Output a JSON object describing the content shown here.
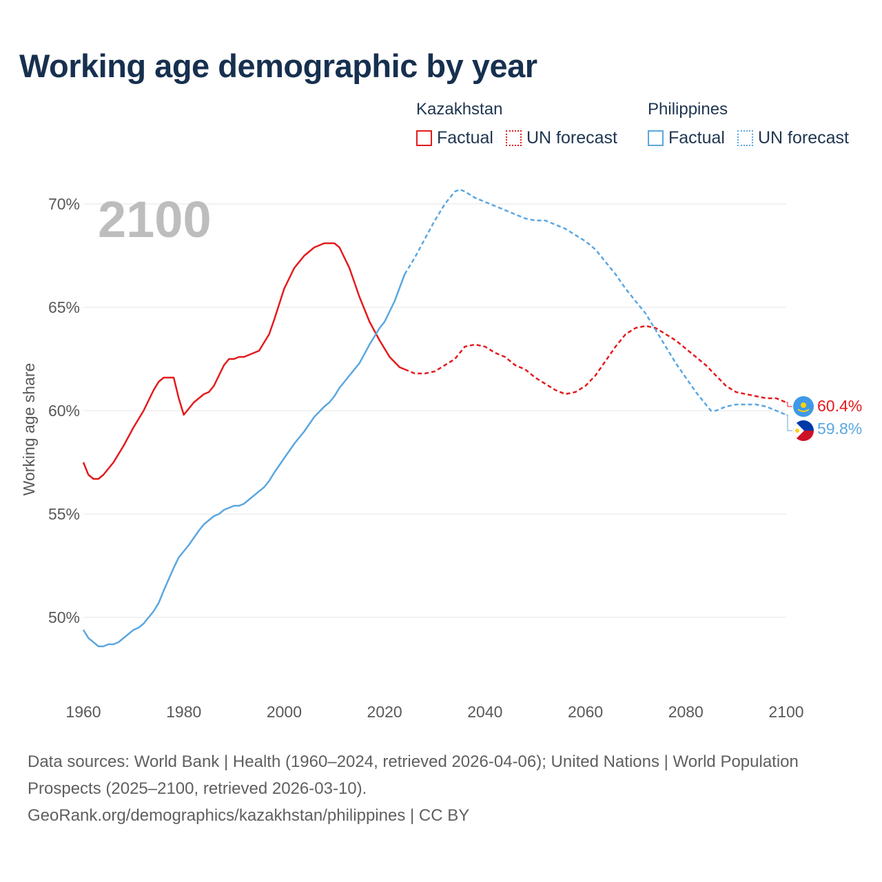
{
  "title": "Working age demographic by year",
  "legend": {
    "groups": [
      {
        "name": "Kazakhstan",
        "factual_label": "Factual",
        "forecast_label": "UN forecast",
        "color": "#e41a1c"
      },
      {
        "name": "Philippines",
        "factual_label": "Factual",
        "forecast_label": "UN forecast",
        "color": "#5aa7e0"
      }
    ]
  },
  "year_badge": "2100",
  "footer": {
    "sources": "Data sources: World Bank | Health (1960–2024, retrieved 2026-04-06); United Nations | World Population Prospects (2025–2100, retrieved 2026-03-10).",
    "link": "GeoRank.org/demographics/kazakhstan/philippines | CC BY"
  },
  "chart_data": {
    "type": "line",
    "title": "Working age demographic by year",
    "xlabel": "",
    "ylabel": "Working age share",
    "xlim": [
      1960,
      2100
    ],
    "ylim": [
      47,
      72
    ],
    "x_ticks": [
      1960,
      1980,
      2000,
      2020,
      2040,
      2060,
      2080,
      2100
    ],
    "y_ticks": [
      50,
      55,
      60,
      65,
      70
    ],
    "y_tick_labels": [
      "50%",
      "55%",
      "60%",
      "65%",
      "70%"
    ],
    "grid": true,
    "factual_until": 2024,
    "series": [
      {
        "name": "Kazakhstan",
        "color": "#e41a1c",
        "end_label": "60.4%",
        "points": [
          [
            1960,
            57.5
          ],
          [
            1961,
            56.9
          ],
          [
            1962,
            56.7
          ],
          [
            1963,
            56.7
          ],
          [
            1964,
            56.9
          ],
          [
            1966,
            57.5
          ],
          [
            1968,
            58.3
          ],
          [
            1970,
            59.2
          ],
          [
            1972,
            60.0
          ],
          [
            1974,
            61.0
          ],
          [
            1975,
            61.4
          ],
          [
            1976,
            61.6
          ],
          [
            1978,
            61.6
          ],
          [
            1979,
            60.6
          ],
          [
            1980,
            59.8
          ],
          [
            1982,
            60.4
          ],
          [
            1984,
            60.8
          ],
          [
            1985,
            60.9
          ],
          [
            1986,
            61.2
          ],
          [
            1988,
            62.2
          ],
          [
            1989,
            62.5
          ],
          [
            1990,
            62.5
          ],
          [
            1991,
            62.6
          ],
          [
            1992,
            62.6
          ],
          [
            1995,
            62.9
          ],
          [
            1997,
            63.7
          ],
          [
            1998,
            64.4
          ],
          [
            2000,
            65.9
          ],
          [
            2002,
            66.9
          ],
          [
            2004,
            67.5
          ],
          [
            2006,
            67.9
          ],
          [
            2008,
            68.1
          ],
          [
            2010,
            68.1
          ],
          [
            2011,
            67.9
          ],
          [
            2013,
            66.9
          ],
          [
            2015,
            65.5
          ],
          [
            2017,
            64.3
          ],
          [
            2019,
            63.4
          ],
          [
            2021,
            62.6
          ],
          [
            2023,
            62.1
          ],
          [
            2024,
            62.0
          ],
          [
            2026,
            61.8
          ],
          [
            2028,
            61.8
          ],
          [
            2030,
            61.9
          ],
          [
            2032,
            62.2
          ],
          [
            2034,
            62.5
          ],
          [
            2036,
            63.1
          ],
          [
            2038,
            63.2
          ],
          [
            2040,
            63.1
          ],
          [
            2042,
            62.8
          ],
          [
            2044,
            62.6
          ],
          [
            2046,
            62.2
          ],
          [
            2048,
            62.0
          ],
          [
            2050,
            61.6
          ],
          [
            2052,
            61.3
          ],
          [
            2054,
            61.0
          ],
          [
            2056,
            60.8
          ],
          [
            2058,
            60.9
          ],
          [
            2060,
            61.2
          ],
          [
            2062,
            61.7
          ],
          [
            2064,
            62.4
          ],
          [
            2066,
            63.1
          ],
          [
            2068,
            63.7
          ],
          [
            2070,
            64.0
          ],
          [
            2072,
            64.1
          ],
          [
            2074,
            64.0
          ],
          [
            2076,
            63.7
          ],
          [
            2078,
            63.4
          ],
          [
            2080,
            63.0
          ],
          [
            2082,
            62.6
          ],
          [
            2084,
            62.2
          ],
          [
            2086,
            61.7
          ],
          [
            2088,
            61.2
          ],
          [
            2090,
            60.9
          ],
          [
            2092,
            60.8
          ],
          [
            2094,
            60.7
          ],
          [
            2096,
            60.6
          ],
          [
            2098,
            60.6
          ],
          [
            2100,
            60.4
          ]
        ]
      },
      {
        "name": "Philippines",
        "color": "#5aa7e0",
        "end_label": "59.8%",
        "points": [
          [
            1960,
            49.4
          ],
          [
            1961,
            49.0
          ],
          [
            1962,
            48.8
          ],
          [
            1963,
            48.6
          ],
          [
            1964,
            48.6
          ],
          [
            1965,
            48.7
          ],
          [
            1966,
            48.7
          ],
          [
            1967,
            48.8
          ],
          [
            1968,
            49.0
          ],
          [
            1970,
            49.4
          ],
          [
            1971,
            49.5
          ],
          [
            1972,
            49.7
          ],
          [
            1974,
            50.3
          ],
          [
            1975,
            50.7
          ],
          [
            1976,
            51.3
          ],
          [
            1978,
            52.4
          ],
          [
            1979,
            52.9
          ],
          [
            1980,
            53.2
          ],
          [
            1981,
            53.5
          ],
          [
            1983,
            54.2
          ],
          [
            1984,
            54.5
          ],
          [
            1986,
            54.9
          ],
          [
            1987,
            55.0
          ],
          [
            1988,
            55.2
          ],
          [
            1990,
            55.4
          ],
          [
            1991,
            55.4
          ],
          [
            1992,
            55.5
          ],
          [
            1994,
            55.9
          ],
          [
            1996,
            56.3
          ],
          [
            1997,
            56.6
          ],
          [
            1998,
            57.0
          ],
          [
            2000,
            57.7
          ],
          [
            2002,
            58.4
          ],
          [
            2004,
            59.0
          ],
          [
            2006,
            59.7
          ],
          [
            2008,
            60.2
          ],
          [
            2009,
            60.4
          ],
          [
            2010,
            60.7
          ],
          [
            2011,
            61.1
          ],
          [
            2013,
            61.7
          ],
          [
            2015,
            62.3
          ],
          [
            2017,
            63.2
          ],
          [
            2019,
            64.0
          ],
          [
            2020,
            64.3
          ],
          [
            2022,
            65.3
          ],
          [
            2024,
            66.6
          ],
          [
            2026,
            67.4
          ],
          [
            2028,
            68.3
          ],
          [
            2030,
            69.2
          ],
          [
            2032,
            70.0
          ],
          [
            2034,
            70.6
          ],
          [
            2035,
            70.7
          ],
          [
            2036,
            70.6
          ],
          [
            2038,
            70.3
          ],
          [
            2040,
            70.1
          ],
          [
            2042,
            69.9
          ],
          [
            2044,
            69.7
          ],
          [
            2046,
            69.5
          ],
          [
            2048,
            69.3
          ],
          [
            2050,
            69.2
          ],
          [
            2052,
            69.2
          ],
          [
            2054,
            69.0
          ],
          [
            2056,
            68.8
          ],
          [
            2058,
            68.5
          ],
          [
            2060,
            68.2
          ],
          [
            2062,
            67.8
          ],
          [
            2064,
            67.2
          ],
          [
            2066,
            66.6
          ],
          [
            2068,
            65.9
          ],
          [
            2070,
            65.3
          ],
          [
            2072,
            64.7
          ],
          [
            2074,
            63.9
          ],
          [
            2076,
            63.1
          ],
          [
            2078,
            62.3
          ],
          [
            2080,
            61.6
          ],
          [
            2082,
            60.9
          ],
          [
            2084,
            60.3
          ],
          [
            2085,
            60.0
          ],
          [
            2086,
            60.0
          ],
          [
            2088,
            60.2
          ],
          [
            2090,
            60.3
          ],
          [
            2092,
            60.3
          ],
          [
            2094,
            60.3
          ],
          [
            2096,
            60.2
          ],
          [
            2098,
            60.0
          ],
          [
            2100,
            59.8
          ]
        ]
      }
    ]
  }
}
